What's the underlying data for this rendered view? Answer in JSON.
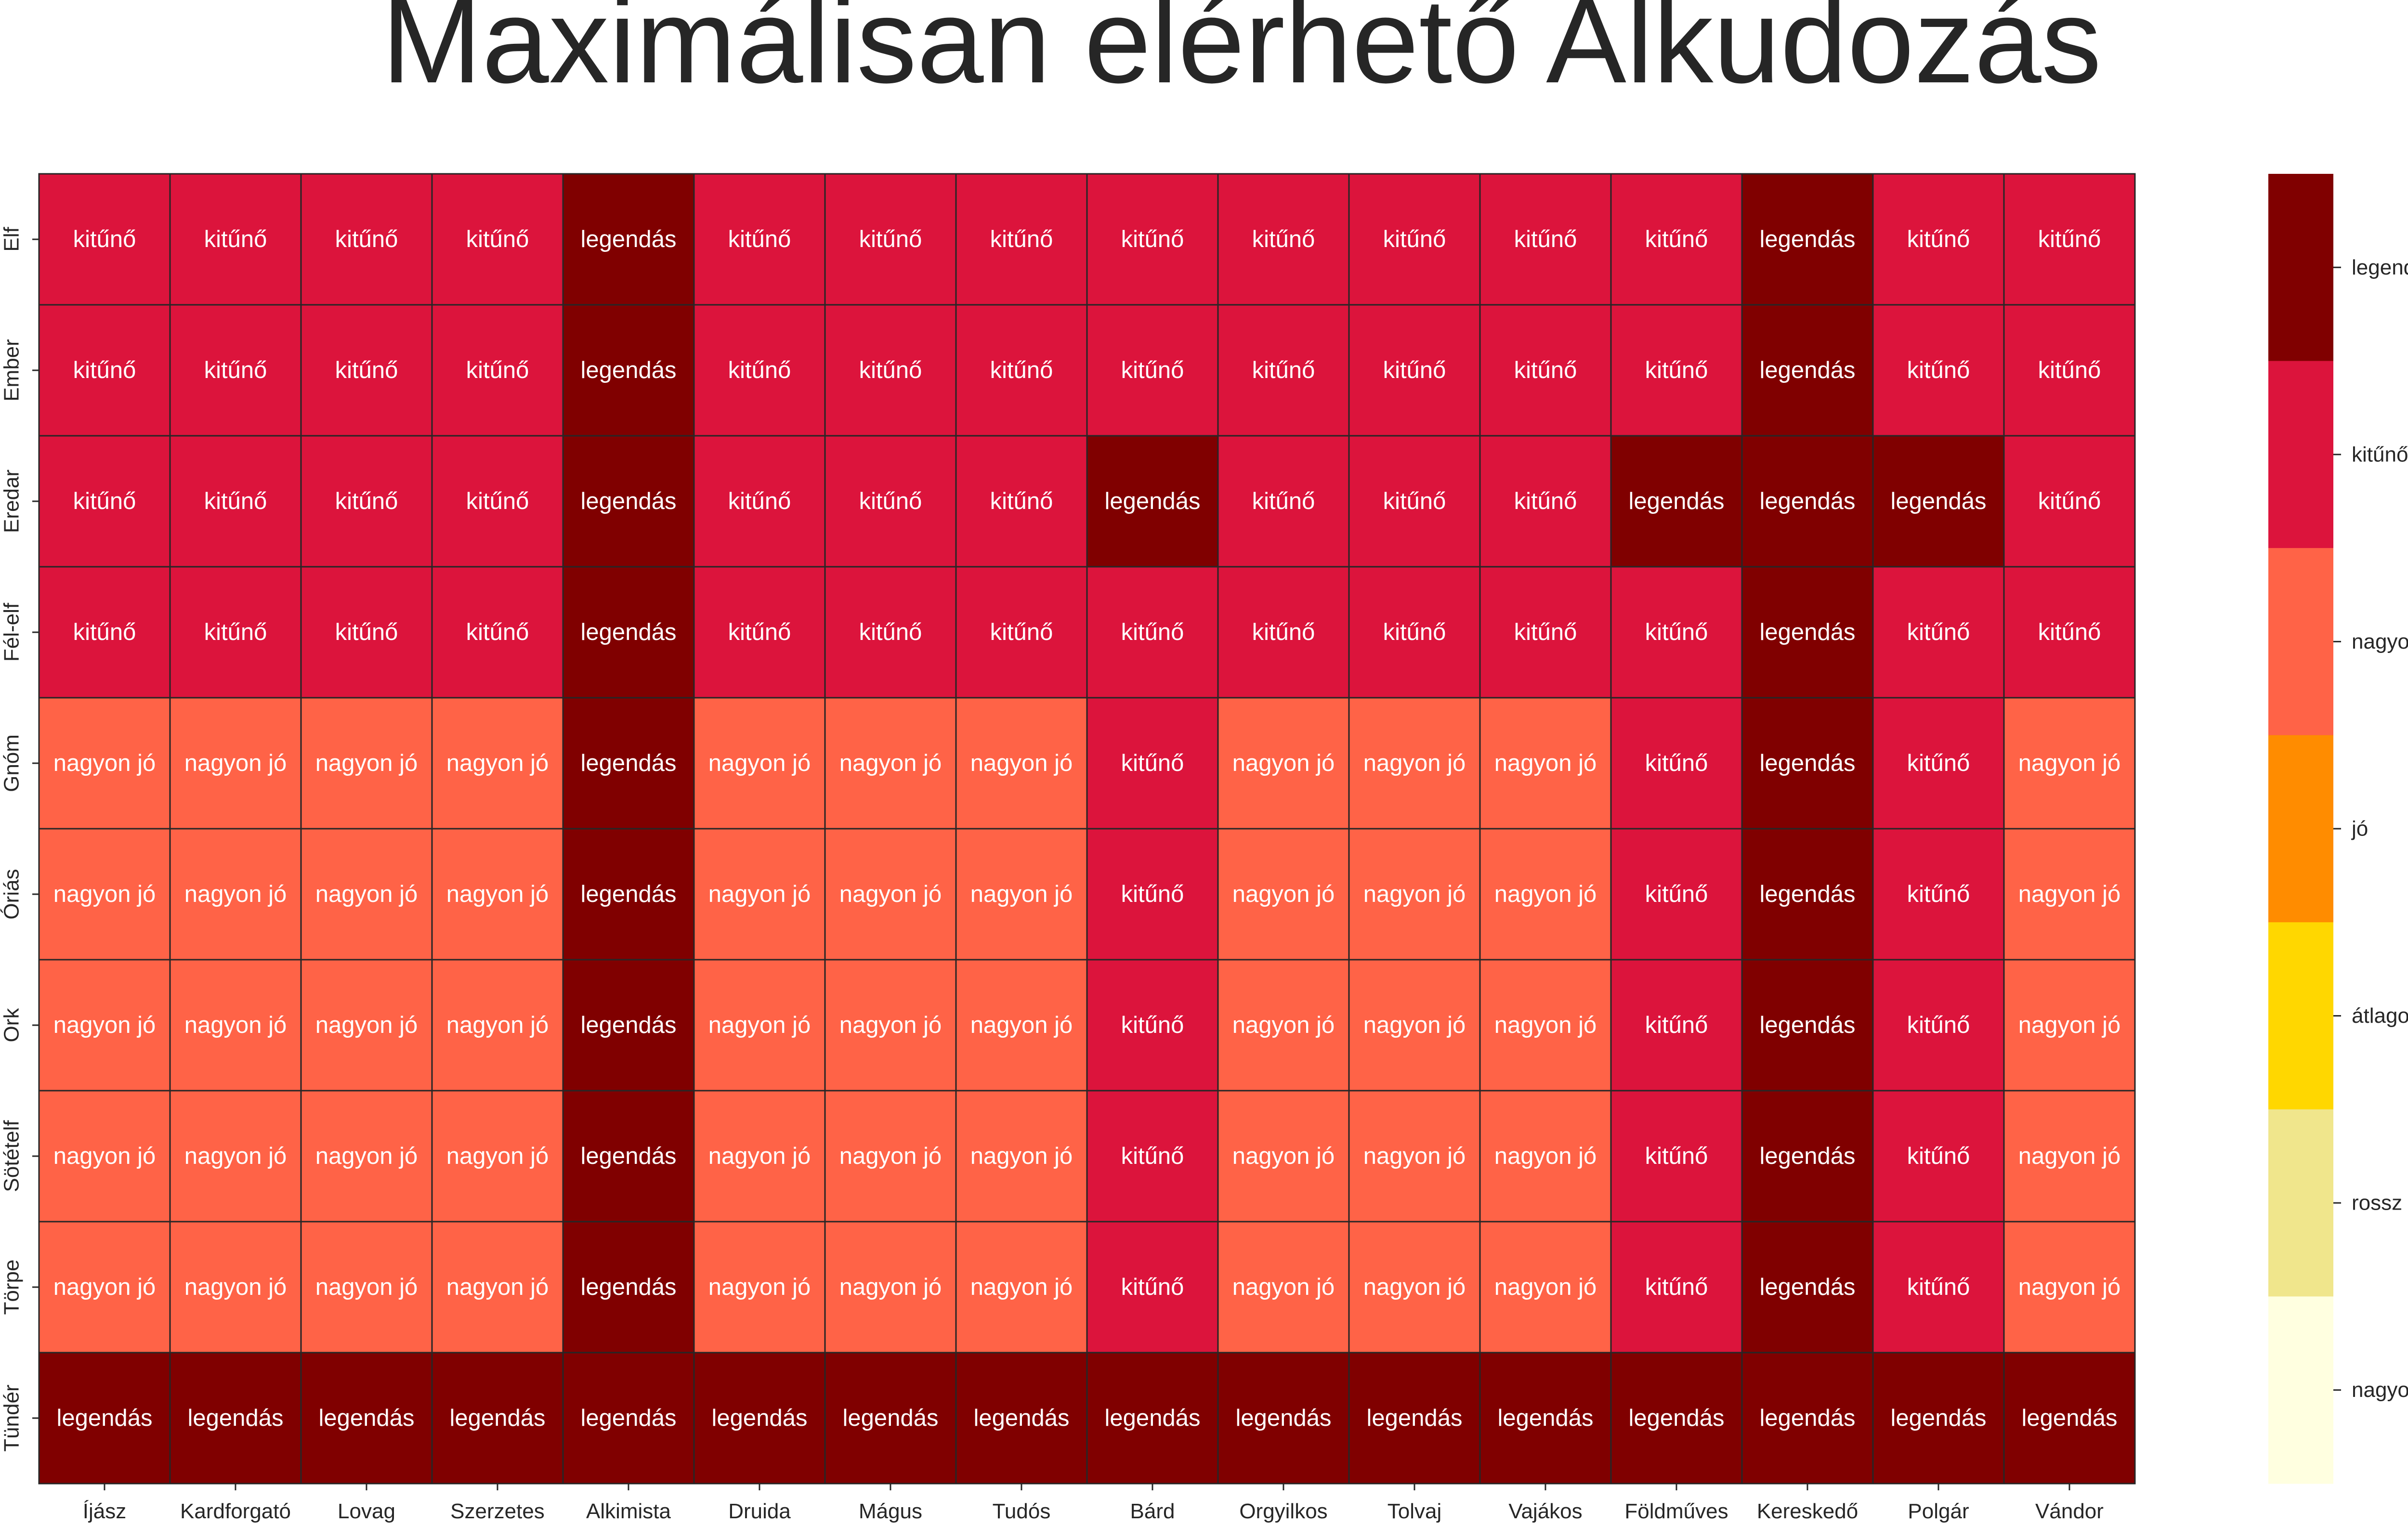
{
  "chart_data": {
    "type": "heatmap",
    "title": "Maximálisan elérhető Alkudozás",
    "xlabel": "",
    "ylabel": "",
    "columns": [
      "Íjász",
      "Kardforgató",
      "Lovag",
      "Szerzetes",
      "Alkimista",
      "Druida",
      "Mágus",
      "Tudós",
      "Bárd",
      "Orgyilkos",
      "Tolvaj",
      "Vajákos",
      "Földműves",
      "Kereskedő",
      "Polgár",
      "Vándor"
    ],
    "rows": [
      "Elf",
      "Ember",
      "Eredar",
      "Fél-elf",
      "Gnóm",
      "Óriás",
      "Ork",
      "Sötételf",
      "Törpe",
      "Tündér"
    ],
    "levels": [
      "nagyon rossz",
      "rossz",
      "átlagos",
      "jó",
      "nagyon jó",
      "kitűnő",
      "legendás"
    ],
    "level_colors": {
      "nagyon rossz": "#ffffe0",
      "rossz": "#f0e68c",
      "átlagos": "#ffd700",
      "jó": "#ff8c00",
      "nagyon jó": "#ff6347",
      "kitűnő": "#dc143c",
      "legendás": "#800000"
    },
    "values": [
      [
        "kitűnő",
        "kitűnő",
        "kitűnő",
        "kitűnő",
        "legendás",
        "kitűnő",
        "kitűnő",
        "kitűnő",
        "kitűnő",
        "kitűnő",
        "kitűnő",
        "kitűnő",
        "kitűnő",
        "legendás",
        "kitűnő",
        "kitűnő"
      ],
      [
        "kitűnő",
        "kitűnő",
        "kitűnő",
        "kitűnő",
        "legendás",
        "kitűnő",
        "kitűnő",
        "kitűnő",
        "kitűnő",
        "kitűnő",
        "kitűnő",
        "kitűnő",
        "kitűnő",
        "legendás",
        "kitűnő",
        "kitűnő"
      ],
      [
        "kitűnő",
        "kitűnő",
        "kitűnő",
        "kitűnő",
        "legendás",
        "kitűnő",
        "kitűnő",
        "kitűnő",
        "legendás",
        "kitűnő",
        "kitűnő",
        "kitűnő",
        "legendás",
        "legendás",
        "legendás",
        "kitűnő"
      ],
      [
        "kitűnő",
        "kitűnő",
        "kitűnő",
        "kitűnő",
        "legendás",
        "kitűnő",
        "kitűnő",
        "kitűnő",
        "kitűnő",
        "kitűnő",
        "kitűnő",
        "kitűnő",
        "kitűnő",
        "legendás",
        "kitűnő",
        "kitűnő"
      ],
      [
        "nagyon jó",
        "nagyon jó",
        "nagyon jó",
        "nagyon jó",
        "legendás",
        "nagyon jó",
        "nagyon jó",
        "nagyon jó",
        "kitűnő",
        "nagyon jó",
        "nagyon jó",
        "nagyon jó",
        "kitűnő",
        "legendás",
        "kitűnő",
        "nagyon jó"
      ],
      [
        "nagyon jó",
        "nagyon jó",
        "nagyon jó",
        "nagyon jó",
        "legendás",
        "nagyon jó",
        "nagyon jó",
        "nagyon jó",
        "kitűnő",
        "nagyon jó",
        "nagyon jó",
        "nagyon jó",
        "kitűnő",
        "legendás",
        "kitűnő",
        "nagyon jó"
      ],
      [
        "nagyon jó",
        "nagyon jó",
        "nagyon jó",
        "nagyon jó",
        "legendás",
        "nagyon jó",
        "nagyon jó",
        "nagyon jó",
        "kitűnő",
        "nagyon jó",
        "nagyon jó",
        "nagyon jó",
        "kitűnő",
        "legendás",
        "kitűnő",
        "nagyon jó"
      ],
      [
        "nagyon jó",
        "nagyon jó",
        "nagyon jó",
        "nagyon jó",
        "legendás",
        "nagyon jó",
        "nagyon jó",
        "nagyon jó",
        "kitűnő",
        "nagyon jó",
        "nagyon jó",
        "nagyon jó",
        "kitűnő",
        "legendás",
        "kitűnő",
        "nagyon jó"
      ],
      [
        "nagyon jó",
        "nagyon jó",
        "nagyon jó",
        "nagyon jó",
        "legendás",
        "nagyon jó",
        "nagyon jó",
        "nagyon jó",
        "kitűnő",
        "nagyon jó",
        "nagyon jó",
        "nagyon jó",
        "kitűnő",
        "legendás",
        "kitűnő",
        "nagyon jó"
      ],
      [
        "legendás",
        "legendás",
        "legendás",
        "legendás",
        "legendás",
        "legendás",
        "legendás",
        "legendás",
        "legendás",
        "legendás",
        "legendás",
        "legendás",
        "legendás",
        "legendás",
        "legendás",
        "legendás"
      ]
    ],
    "colorbar_position": "right",
    "grid": true
  }
}
